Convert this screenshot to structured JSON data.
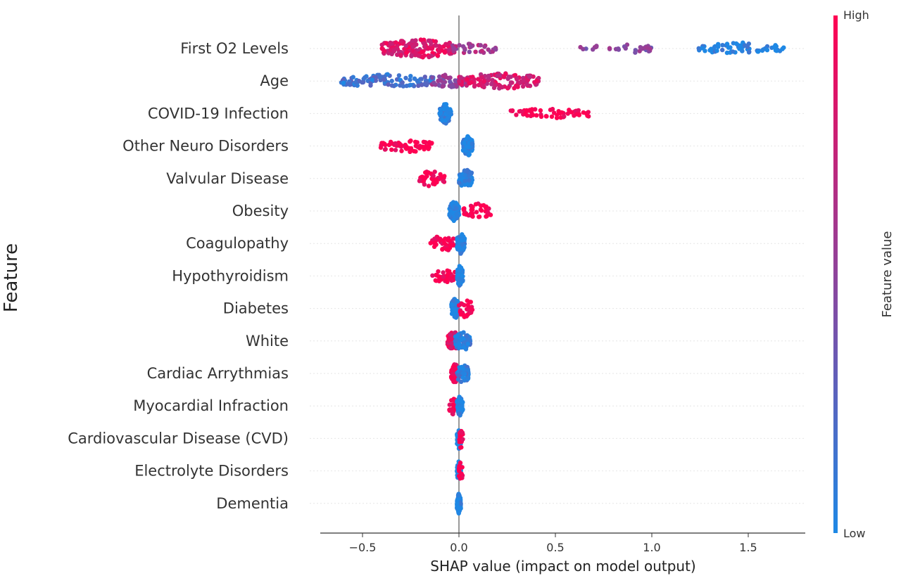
{
  "chart_data": {
    "type": "scatter",
    "subtype": "shap-beeswarm",
    "title": "",
    "xlabel": "SHAP value (impact on model output)",
    "ylabel": "Feature",
    "xlim": [
      -0.72,
      1.78
    ],
    "x_ticks": [
      {
        "value": -0.5,
        "label": "−0.5"
      },
      {
        "value": 0.0,
        "label": "0.0"
      },
      {
        "value": 0.5,
        "label": "0.5"
      },
      {
        "value": 1.0,
        "label": "1.0"
      },
      {
        "value": 1.5,
        "label": "1.5"
      }
    ],
    "grid": false,
    "zero_line": true,
    "colorbar": {
      "title": "Feature value",
      "high_label": "High",
      "low_label": "Low",
      "low_color": "#1E88E5",
      "high_color": "#FF0052"
    },
    "features": [
      {
        "name": "First O2 Levels",
        "clusters": [
          {
            "from": -0.4,
            "to": -0.02,
            "value": 0.85,
            "n": 150
          },
          {
            "from": -0.05,
            "to": 0.2,
            "value": 0.6,
            "n": 35
          },
          {
            "from": 0.62,
            "to": 0.72,
            "value": 0.45,
            "n": 8
          },
          {
            "from": 0.78,
            "to": 1.0,
            "value": 0.45,
            "n": 22
          },
          {
            "from": 1.24,
            "to": 1.69,
            "value": 0.02,
            "n": 70
          }
        ]
      },
      {
        "name": "Age",
        "clusters": [
          {
            "from": -0.61,
            "to": -0.12,
            "value": 0.15,
            "n": 100
          },
          {
            "from": -0.15,
            "to": 0.05,
            "value": 0.5,
            "n": 40
          },
          {
            "from": 0.0,
            "to": 0.42,
            "value": 0.8,
            "n": 120
          }
        ]
      },
      {
        "name": "COVID-19 Infection",
        "clusters": [
          {
            "from": -0.1,
            "to": -0.04,
            "value": 0.0,
            "n": 80
          },
          {
            "from": 0.26,
            "to": 0.68,
            "value": 1.0,
            "n": 55
          }
        ]
      },
      {
        "name": "Other Neuro Disorders",
        "clusters": [
          {
            "from": -0.41,
            "to": -0.14,
            "value": 1.0,
            "n": 55
          },
          {
            "from": 0.02,
            "to": 0.07,
            "value": 0.0,
            "n": 90
          }
        ]
      },
      {
        "name": "Valvular Disease",
        "clusters": [
          {
            "from": -0.22,
            "to": -0.07,
            "value": 1.0,
            "n": 40
          },
          {
            "from": 0.0,
            "to": 0.07,
            "value": 0.0,
            "n": 80
          }
        ]
      },
      {
        "name": "Obesity",
        "clusters": [
          {
            "from": -0.05,
            "to": 0.0,
            "value": 0.0,
            "n": 80
          },
          {
            "from": 0.02,
            "to": 0.17,
            "value": 1.0,
            "n": 40
          }
        ]
      },
      {
        "name": "Coagulopathy",
        "clusters": [
          {
            "from": -0.15,
            "to": -0.02,
            "value": 1.0,
            "n": 40
          },
          {
            "from": -0.01,
            "to": 0.03,
            "value": 0.0,
            "n": 90
          }
        ]
      },
      {
        "name": "Hypothyroidism",
        "clusters": [
          {
            "from": -0.14,
            "to": -0.02,
            "value": 1.0,
            "n": 35
          },
          {
            "from": -0.01,
            "to": 0.02,
            "value": 0.0,
            "n": 90
          }
        ]
      },
      {
        "name": "Diabetes",
        "clusters": [
          {
            "from": -0.04,
            "to": 0.0,
            "value": 0.0,
            "n": 80
          },
          {
            "from": 0.0,
            "to": 0.07,
            "value": 1.0,
            "n": 30
          }
        ]
      },
      {
        "name": "White",
        "clusters": [
          {
            "from": -0.06,
            "to": 0.0,
            "value": 0.9,
            "n": 70
          },
          {
            "from": -0.02,
            "to": 0.06,
            "value": 0.05,
            "n": 60
          }
        ]
      },
      {
        "name": "Cardiac Arrythmias",
        "clusters": [
          {
            "from": -0.04,
            "to": 0.0,
            "value": 0.95,
            "n": 60
          },
          {
            "from": -0.01,
            "to": 0.05,
            "value": 0.05,
            "n": 60
          }
        ]
      },
      {
        "name": "Myocardial Infraction",
        "clusters": [
          {
            "from": -0.05,
            "to": -0.01,
            "value": 1.0,
            "n": 20
          },
          {
            "from": -0.01,
            "to": 0.02,
            "value": 0.0,
            "n": 60
          }
        ]
      },
      {
        "name": "Cardiovascular Disease (CVD)",
        "clusters": [
          {
            "from": -0.01,
            "to": 0.01,
            "value": 0.0,
            "n": 60
          },
          {
            "from": 0.0,
            "to": 0.02,
            "value": 1.0,
            "n": 15
          }
        ]
      },
      {
        "name": "Electrolyte Disorders",
        "clusters": [
          {
            "from": -0.01,
            "to": 0.01,
            "value": 0.0,
            "n": 60
          },
          {
            "from": 0.0,
            "to": 0.02,
            "value": 1.0,
            "n": 15
          }
        ]
      },
      {
        "name": "Dementia",
        "clusters": [
          {
            "from": -0.01,
            "to": 0.01,
            "value": 0.0,
            "n": 70
          }
        ]
      }
    ]
  }
}
